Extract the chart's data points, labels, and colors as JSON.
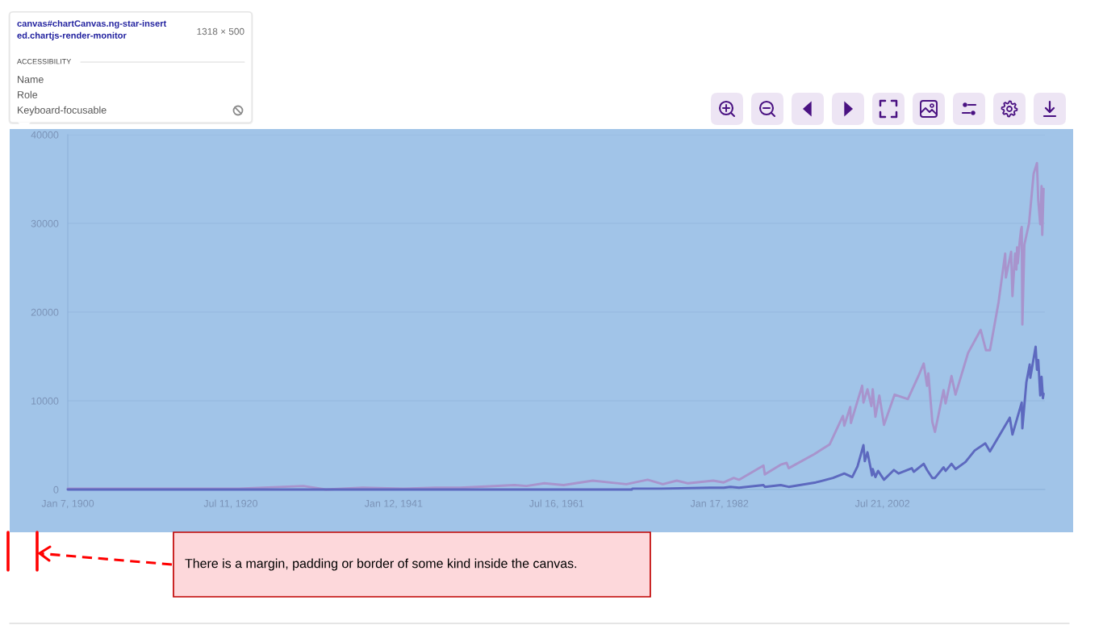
{
  "chart_data": {
    "type": "line",
    "series": [
      {
        "color": "#a894cd",
        "x": [
          "1900-01-07",
          "1921-08",
          "1929-09",
          "1932-07",
          "1937-03",
          "1942-04",
          "1946-05",
          "1949-06",
          "1956-04",
          "1957-10",
          "1960-01",
          "1962-06",
          "1966-02",
          "1970-05",
          "1973-01",
          "1974-12",
          "1976-09",
          "1978-02",
          "1981-04",
          "1982-08",
          "1983-11",
          "1984-07",
          "1987-08",
          "1987-10",
          "1989-10",
          "1990-07",
          "1990-10",
          "1994-01",
          "1995-12",
          "1997-08",
          "1997-10",
          "1998-07",
          "1998-08",
          "2000-01",
          "2000-03",
          "2000-09",
          "2001-03",
          "2001-05",
          "2001-09",
          "2002-03",
          "2002-10",
          "2004-02",
          "2005-10",
          "2007-02",
          "2007-10",
          "2008-03",
          "2008-05",
          "2008-11",
          "2009-03",
          "2010-04",
          "2010-07",
          "2011-04",
          "2011-10",
          "2013-05",
          "2014-12",
          "2015-08",
          "2016-02",
          "2017-03",
          "2018-01",
          "2018-02",
          "2018-10",
          "2018-12",
          "2019-04",
          "2019-06",
          "2019-07",
          "2019-08",
          "2019-11",
          "2020-01",
          "2020-02",
          "2020-03",
          "2020-06",
          "2021-01",
          "2021-08",
          "2022-01",
          "2022-03",
          "2022-06",
          "2022-08",
          "2022-09",
          "2022-11"
        ],
        "values": [
          100,
          100,
          400,
          0,
          200,
          100,
          200,
          200,
          500,
          400,
          700,
          500,
          1000,
          600,
          1100,
          600,
          1000,
          700,
          1000,
          800,
          1300,
          1100,
          2700,
          1700,
          2800,
          3000,
          2400,
          4000,
          5100,
          8300,
          7200,
          9300,
          7500,
          11700,
          9800,
          11300,
          9400,
          11300,
          8200,
          10600,
          7300,
          10700,
          10200,
          12800,
          14200,
          11700,
          13100,
          7600,
          6500,
          11200,
          9700,
          12800,
          10700,
          15400,
          18000,
          15700,
          15700,
          21100,
          26600,
          23900,
          26800,
          21800,
          26600,
          24800,
          27300,
          25500,
          28000,
          29300,
          29600,
          18600,
          27600,
          30000,
          35600,
          36800,
          32600,
          29900,
          34200,
          28700,
          33900
        ]
      },
      {
        "color": "#5d69bf",
        "x": [
          "1900-01-07",
          "1971-01",
          "1971-02",
          "1974-10",
          "1980-11",
          "1982-08",
          "1983-06",
          "1984-07",
          "1987-08",
          "1987-10",
          "1989-10",
          "1990-10",
          "1994-03",
          "1996-05",
          "1997-10",
          "1998-10",
          "1999-06",
          "2000-03",
          "2000-05",
          "2000-09",
          "2001-04",
          "2001-05",
          "2001-09",
          "2002-01",
          "2002-10",
          "2004-01",
          "2004-08",
          "2006-04",
          "2006-07",
          "2007-10",
          "2008-03",
          "2008-11",
          "2009-03",
          "2010-04",
          "2010-07",
          "2011-04",
          "2011-10",
          "2013-01",
          "2014-03",
          "2015-07",
          "2016-02",
          "2018-08",
          "2018-12",
          "2020-02",
          "2020-03",
          "2020-09",
          "2021-02",
          "2021-03",
          "2021-11",
          "2022-01",
          "2022-03",
          "2022-06",
          "2022-08",
          "2022-10",
          "2022-11"
        ],
        "values": [
          0,
          0,
          100,
          100,
          200,
          200,
          300,
          200,
          500,
          300,
          500,
          300,
          800,
          1300,
          1800,
          1400,
          2600,
          5000,
          3200,
          4200,
          1600,
          2300,
          1400,
          2100,
          1100,
          2200,
          1800,
          2400,
          2000,
          2900,
          2200,
          1300,
          1300,
          2500,
          2100,
          2900,
          2300,
          3100,
          4400,
          5200,
          4300,
          8100,
          6200,
          9800,
          6900,
          12100,
          14100,
          12600,
          16100,
          13500,
          14600,
          10600,
          12700,
          10300,
          10800
        ]
      }
    ],
    "xlim": [
      "1900-01-07",
      "2023-01-01"
    ],
    "xticks": [
      {
        "value": "1900-01-07",
        "label": "Jan 7, 1900"
      },
      {
        "value": "1920-07-11",
        "label": "Jul 11, 1920"
      },
      {
        "value": "1941-01-12",
        "label": "Jan 12, 1941"
      },
      {
        "value": "1961-07-16",
        "label": "Jul 16, 1961"
      },
      {
        "value": "1982-01-17",
        "label": "Jan 17, 1982"
      },
      {
        "value": "2002-07-21",
        "label": "Jul 21, 2002"
      }
    ],
    "ylim": [
      0,
      40000
    ],
    "yticks": [
      0,
      10000,
      20000,
      30000,
      40000
    ],
    "grid": "y",
    "annotations": [
      "canvas#chartCanvas.ng-star-insert\ned.chartjs-render-monitor",
      "1318 × 500",
      "ACCESSIBILITY",
      "Name",
      "Role",
      "Keyboard-focusable",
      "There is a margin, padding or border of some kind inside the canvas."
    ]
  }
}
